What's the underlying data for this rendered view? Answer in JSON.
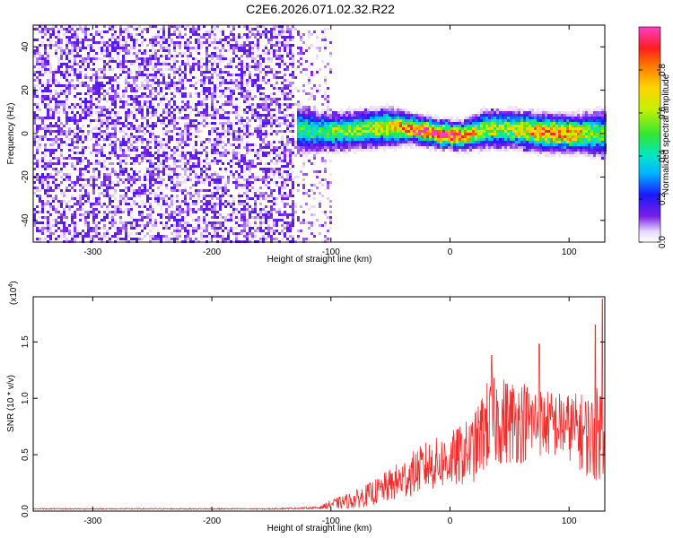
{
  "title": "C2E6.2026.071.02.32.R22",
  "colors": {
    "scatter": "#7a1ee6",
    "snr_line": "#ee2d2d",
    "axis": "#000000"
  },
  "chart_data": [
    {
      "type": "heatmap",
      "panel": "top",
      "xlabel": "Height of straight line (km)",
      "ylabel": "Frequency (Hz)",
      "xlim": [
        -350,
        130
      ],
      "ylim": [
        -50,
        50
      ],
      "x_ticks": [
        -300,
        -200,
        -100,
        0,
        100
      ],
      "y_ticks": [
        -40,
        -20,
        0,
        20,
        40
      ],
      "x_tick_labels": [
        "-300",
        "-200",
        "-100",
        "0",
        "100"
      ],
      "y_tick_labels": [
        "-40",
        "-20",
        "0",
        "20",
        "40"
      ],
      "colorbar": {
        "label": "Normalized spectral amplitude",
        "range": [
          0.0,
          1.0
        ],
        "ticks": [
          0.0,
          0.2,
          0.4,
          0.6,
          0.8
        ],
        "tick_labels": [
          "0.0",
          "0.2",
          "0.4",
          "0.6",
          "0.8"
        ]
      },
      "noise_region_x": [
        -350,
        -100
      ],
      "noise_amplitude": 0.15,
      "signal_track": {
        "x": [
          -128,
          -110,
          -90,
          -70,
          -50,
          -30,
          -10,
          10,
          30,
          50,
          70,
          90,
          110,
          130
        ],
        "freq": [
          2,
          1,
          1,
          2,
          3,
          2,
          0,
          -1,
          2,
          2,
          1,
          0,
          0,
          0
        ],
        "peak_amplitude": [
          0.45,
          0.5,
          0.55,
          0.6,
          0.7,
          0.9,
          0.95,
          0.85,
          0.6,
          0.6,
          0.75,
          0.85,
          0.7,
          0.5
        ],
        "spread_hz": [
          5,
          4,
          4,
          4,
          4,
          3,
          3,
          3,
          4,
          4,
          4,
          4,
          4,
          5
        ]
      }
    },
    {
      "type": "line",
      "panel": "bottom",
      "xlabel": "Height of straight line (km)",
      "ylabel": "SNR (10 * v/v)",
      "multiplier": "(x10",
      "multiplier_exp": "4",
      "multiplier_close": ")",
      "xlim": [
        -350,
        130
      ],
      "ylim": [
        0,
        1.9
      ],
      "x_ticks": [
        -300,
        -200,
        -100,
        0,
        100
      ],
      "y_ticks": [
        0.0,
        0.5,
        1.0,
        1.5
      ],
      "x_tick_labels": [
        "-300",
        "-200",
        "-100",
        "0",
        "100"
      ],
      "y_tick_labels": [
        "0.0",
        "0.5",
        "1.0",
        "1.5"
      ],
      "envelope": {
        "x": [
          -350,
          -150,
          -110,
          -100,
          -80,
          -60,
          -40,
          -20,
          0,
          20,
          30,
          40,
          60,
          80,
          100,
          120,
          130
        ],
        "mean": [
          0.02,
          0.02,
          0.03,
          0.06,
          0.1,
          0.18,
          0.28,
          0.4,
          0.45,
          0.55,
          0.75,
          0.8,
          0.8,
          0.78,
          0.75,
          0.65,
          0.75
        ],
        "amp": [
          0.005,
          0.005,
          0.01,
          0.04,
          0.08,
          0.12,
          0.18,
          0.22,
          0.25,
          0.3,
          0.4,
          0.4,
          0.38,
          0.3,
          0.3,
          0.4,
          0.45
        ],
        "peaks": [
          {
            "x": 35,
            "y": 1.38
          },
          {
            "x": 75,
            "y": 1.48
          },
          {
            "x": 122,
            "y": 1.65
          },
          {
            "x": 128,
            "y": 1.88
          }
        ]
      }
    }
  ]
}
